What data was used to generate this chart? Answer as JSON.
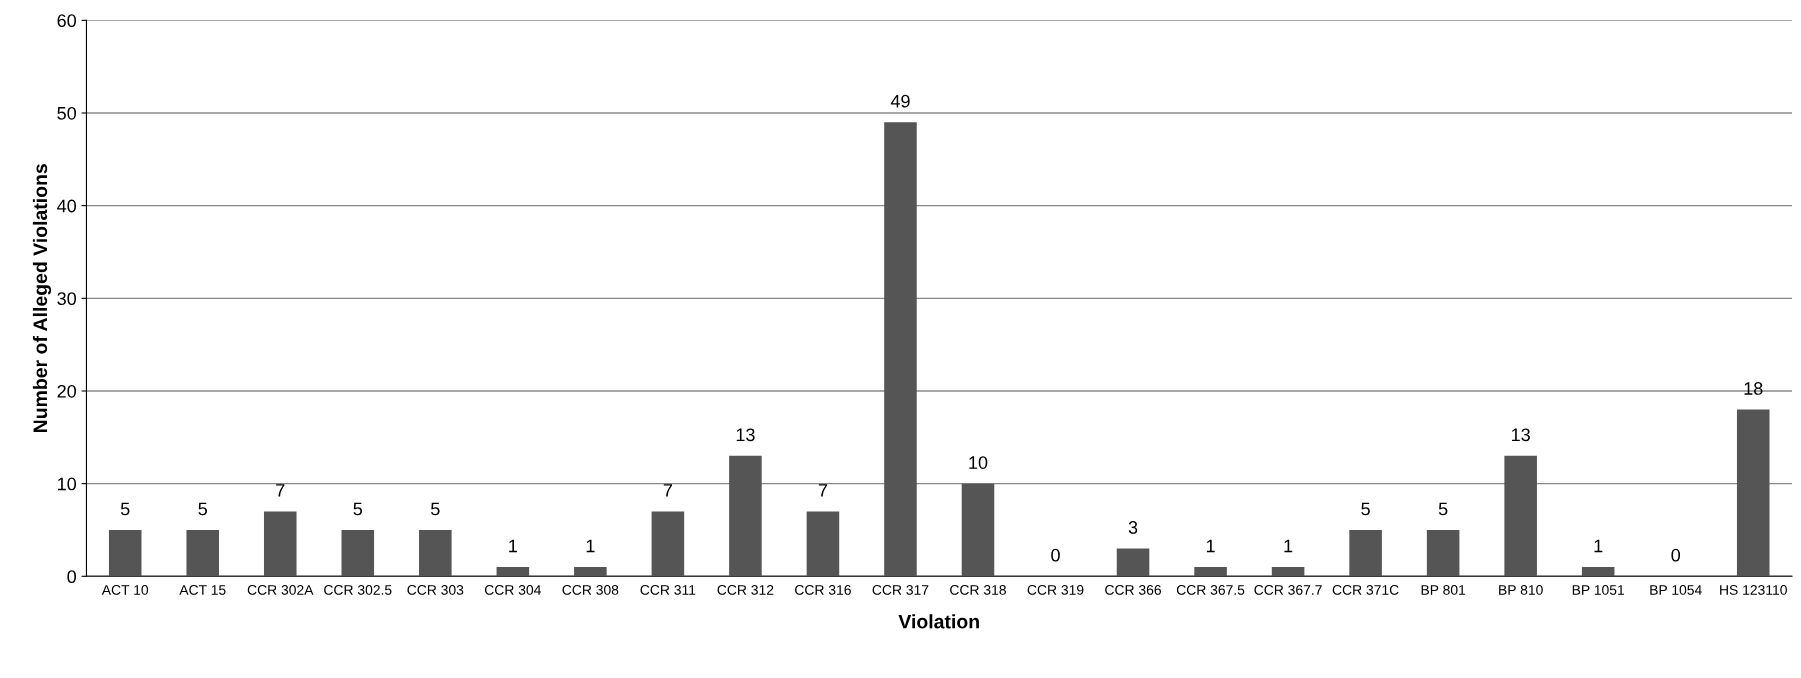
{
  "chart_data": {
    "type": "bar",
    "xlabel": "Violation",
    "ylabel": "Number of Alleged Violations",
    "categories": [
      "ACT 10",
      "ACT 15",
      "CCR 302A",
      "CCR 302.5",
      "CCR 303",
      "CCR 304",
      "CCR 308",
      "CCR 311",
      "CCR 312",
      "CCR 316",
      "CCR 317",
      "CCR 318",
      "CCR 319",
      "CCR 366",
      "CCR 367.5",
      "CCR 367.7",
      "CCR 371C",
      "BP 801",
      "BP 810",
      "BP 1051",
      "BP 1054",
      "HS 123110"
    ],
    "values": [
      5,
      5,
      7,
      5,
      5,
      1,
      1,
      7,
      13,
      7,
      49,
      10,
      0,
      3,
      1,
      1,
      5,
      5,
      13,
      1,
      0,
      18
    ],
    "color": "#555555",
    "ylim": [
      0,
      60
    ],
    "yticks": [
      0,
      10,
      20,
      30,
      40,
      50,
      60
    ],
    "grid": "y",
    "data_labels": true,
    "legend": false
  }
}
